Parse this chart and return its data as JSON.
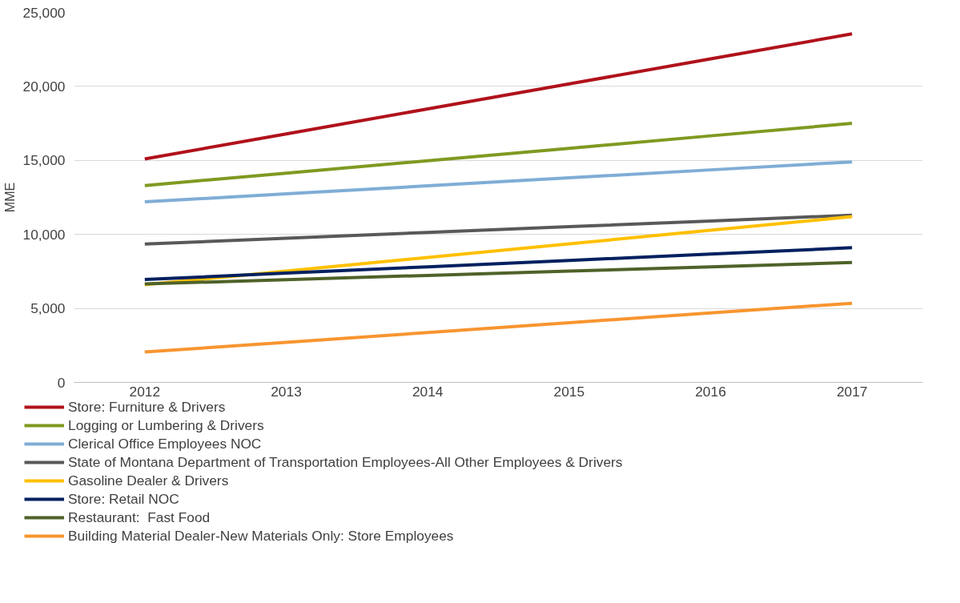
{
  "chart_data": {
    "type": "line",
    "ylabel": "MME",
    "categories": [
      "2012",
      "2013",
      "2014",
      "2015",
      "2016",
      "2017"
    ],
    "series": [
      {
        "name": "Store: Furniture & Drivers",
        "color": "#b0121b",
        "values": [
          15100,
          16790,
          18480,
          20170,
          21860,
          23550
        ]
      },
      {
        "name": "Logging or Lumbering & Drivers",
        "color": "#7f9a21",
        "values": [
          13300,
          14140,
          14980,
          15820,
          16660,
          17500
        ]
      },
      {
        "name": "Clerical Office Employees NOC",
        "color": "#7fadd6",
        "values": [
          12200,
          12740,
          13280,
          13820,
          14360,
          14900
        ]
      },
      {
        "name": "State of Montana Department of Transportation Employees-All Other Employees & Drivers",
        "color": "#595959",
        "values": [
          9350,
          9740,
          10130,
          10520,
          10910,
          11300
        ]
      },
      {
        "name": "Gasoline Dealer & Drivers",
        "color": "#ffc000",
        "values": [
          6600,
          7520,
          8440,
          9360,
          10280,
          11200
        ]
      },
      {
        "name": "Store: Retail NOC",
        "color": "#002060",
        "values": [
          6950,
          7380,
          7810,
          8240,
          8670,
          9100
        ]
      },
      {
        "name": "Restaurant:  Fast Food",
        "color": "#4f6228",
        "values": [
          6650,
          6940,
          7230,
          7520,
          7810,
          8100
        ]
      },
      {
        "name": "Building Material Dealer-New Materials Only: Store Employees",
        "color": "#f79530",
        "values": [
          2050,
          2710,
          3370,
          4030,
          4690,
          5350
        ]
      }
    ],
    "ylim": [
      0,
      25000
    ],
    "yticks": [
      {
        "value": 0,
        "label": "0"
      },
      {
        "value": 5000,
        "label": "5,000"
      },
      {
        "value": 10000,
        "label": "10,000"
      },
      {
        "value": 15000,
        "label": "15,000"
      },
      {
        "value": 20000,
        "label": "20,000"
      },
      {
        "value": 25000,
        "label": "25,000"
      }
    ],
    "grid": "y",
    "legend": "bottom",
    "line_style": "solid",
    "marker": "none"
  }
}
